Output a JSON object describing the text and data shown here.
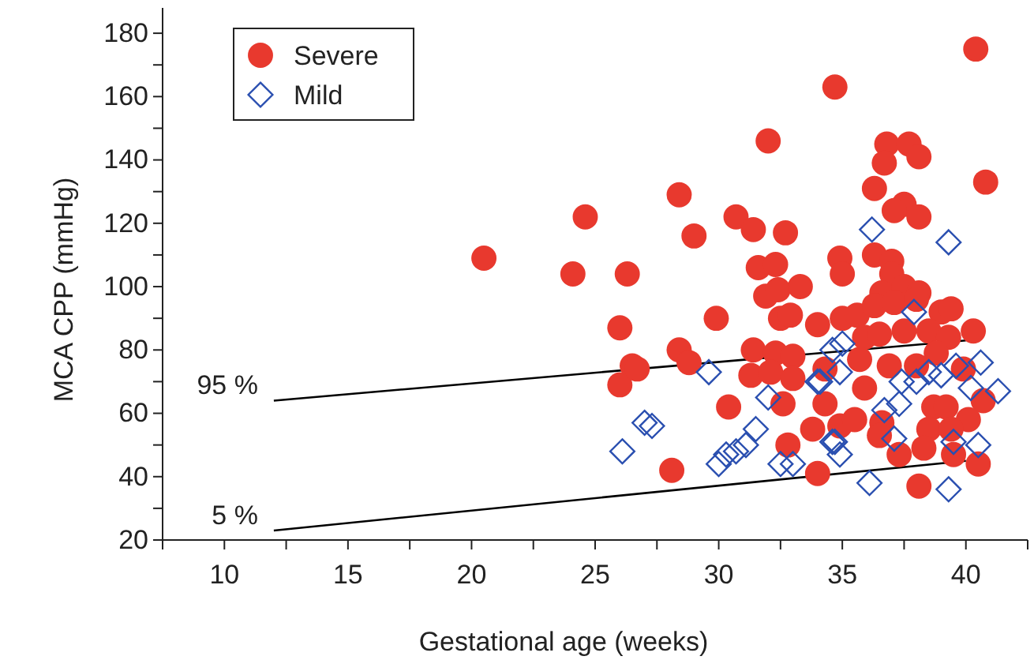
{
  "chart_data": {
    "type": "scatter",
    "xlabel": "Gestational age (weeks)",
    "ylabel": "MCA CPP (mmHg)",
    "xlim": [
      7.5,
      42.5
    ],
    "ylim": [
      20,
      188
    ],
    "xticks": [
      {
        "value": 7.5,
        "label": null
      },
      10,
      {
        "value": 12.5,
        "label": null
      },
      15,
      {
        "value": 17.5,
        "label": null
      },
      20,
      {
        "value": 22.5,
        "label": null
      },
      25,
      {
        "value": 27.5,
        "label": null
      },
      30,
      {
        "value": 32.5,
        "label": null
      },
      35,
      {
        "value": 37.5,
        "label": null
      },
      40,
      {
        "value": 42.5,
        "label": null
      }
    ],
    "yticks": [
      20,
      {
        "value": 30,
        "label": null
      },
      40,
      {
        "value": 50,
        "label": null
      },
      60,
      {
        "value": 70,
        "label": null
      },
      80,
      {
        "value": 90,
        "label": null
      },
      100,
      {
        "value": 110,
        "label": null
      },
      120,
      {
        "value": 130,
        "label": null
      },
      140,
      {
        "value": 150,
        "label": null
      },
      160,
      {
        "value": 170,
        "label": null
      },
      180
    ],
    "legend": "top left",
    "grid": false,
    "series": [
      {
        "name": "95 %",
        "type": "line",
        "color": "#000000",
        "marker": "none",
        "x": [
          12,
          40
        ],
        "values": [
          64,
          83
        ]
      },
      {
        "name": "5 %",
        "type": "line",
        "color": "#000000",
        "marker": "none",
        "x": [
          12,
          40
        ],
        "values": [
          23,
          45
        ]
      },
      {
        "name": "Severe",
        "color": "#e8392e",
        "marker": "circle",
        "x": [
          20.5,
          24.6,
          24.1,
          26.3,
          26.0,
          26.0,
          26.5,
          28.1,
          32.0,
          28.4,
          30.7,
          29.0,
          31.4,
          32.7,
          31.6,
          32.3,
          31.9,
          32.4,
          33.3,
          29.9,
          32.5,
          32.9,
          34.0,
          28.4,
          28.8,
          26.7,
          31.4,
          32.3,
          33.0,
          31.3,
          32.1,
          33.0,
          34.3,
          30.4,
          32.6,
          34.3,
          33.8,
          32.8,
          34.0,
          40.4,
          34.7,
          36.8,
          37.7,
          36.7,
          38.1,
          40.8,
          36.3,
          37.5,
          37.1,
          38.1,
          34.9,
          35.0,
          36.3,
          37.0,
          37.0,
          36.6,
          37.5,
          38.1,
          35.0,
          35.6,
          36.3,
          37.1,
          38.0,
          39.0,
          39.4,
          40.3,
          35.9,
          36.5,
          37.5,
          38.5,
          39.3,
          35.7,
          36.9,
          38.0,
          38.8,
          39.9,
          35.9,
          40.7,
          38.7,
          39.2,
          40.1,
          34.9,
          35.5,
          36.6,
          38.5,
          39.4,
          36.5,
          37.3,
          38.3,
          39.5,
          40.5,
          38.1
        ],
        "values": [
          109,
          122,
          104,
          104,
          87,
          69,
          75,
          42,
          146,
          129,
          122,
          116,
          118,
          117,
          106,
          107,
          97,
          99,
          100,
          90,
          90,
          91,
          88,
          80,
          76,
          74,
          80,
          79,
          78,
          72,
          73,
          71,
          74,
          62,
          63,
          63,
          55,
          50,
          41,
          175,
          163,
          145,
          145,
          139,
          141,
          133,
          131,
          126,
          124,
          122,
          109,
          104,
          110,
          108,
          104,
          98,
          100,
          98,
          90,
          91,
          94,
          95,
          96,
          92,
          93,
          86,
          84,
          85,
          86,
          86,
          84,
          77,
          75,
          75,
          79,
          74,
          68,
          64,
          62,
          62,
          58,
          56,
          58,
          57,
          55,
          55,
          53,
          47,
          49,
          47,
          44,
          37
        ]
      },
      {
        "name": "Mild",
        "color": "#2a4fb0",
        "marker": "diamond",
        "x": [
          29.6,
          27.0,
          27.3,
          26.1,
          32.0,
          31.5,
          31.1,
          30.7,
          30.3,
          30.0,
          32.5,
          34.0,
          34.6,
          34.6,
          37.9,
          35.0,
          34.1,
          34.9,
          37.4,
          38.0,
          38.5,
          40.6,
          41.3,
          40.2,
          37.3,
          36.7,
          34.7,
          34.9,
          37.1,
          39.5,
          40.5,
          36.1,
          39.3,
          33.0,
          39.6,
          39.0,
          36.2,
          39.3
        ],
        "values": [
          73,
          57,
          56,
          48,
          65,
          55,
          50,
          48,
          47,
          44,
          44,
          70,
          51,
          80,
          92,
          82,
          70,
          73,
          70,
          70,
          73,
          76,
          67,
          68,
          63,
          61,
          51,
          47,
          52,
          51,
          50,
          38,
          36,
          44,
          75,
          72,
          118,
          114
        ]
      }
    ]
  }
}
